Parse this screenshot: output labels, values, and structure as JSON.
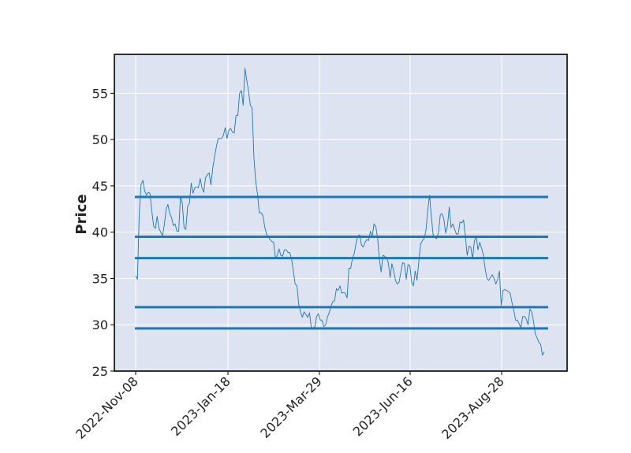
{
  "chart_data": {
    "type": "line",
    "title": "",
    "xlabel": "",
    "ylabel": "Price",
    "ylim": [
      25,
      59.2
    ],
    "y_ticks": [
      25,
      30,
      35,
      40,
      45,
      50,
      55
    ],
    "x_ticks": [
      "2022-Nov-08",
      "2023-Jan-18",
      "2023-Mar-29",
      "2023-Jun-16",
      "2023-Aug-28"
    ],
    "grid": true,
    "colors": {
      "background": "#dde3f0",
      "line": "#1f77b4",
      "grid": "#ffffff",
      "frame": "#000000"
    },
    "series": [
      {
        "values": [
          35.3,
          34.9,
          42.0,
          45.1,
          45.6,
          44.5,
          44.0,
          44.3,
          44.2,
          42.3,
          40.7,
          40.4,
          41.7,
          40.4,
          40.0,
          39.6,
          40.8,
          42.5,
          43.0,
          42.0,
          41.6,
          40.7,
          40.9,
          40.1,
          40.1,
          43.8,
          43.2,
          40.5,
          40.3,
          42.8,
          43.1,
          45.3,
          44.2,
          44.8,
          44.9,
          44.8,
          45.8,
          44.8,
          44.3,
          45.9,
          46.2,
          46.4,
          45.1,
          46.9,
          48.1,
          49.2,
          50.1,
          50.1,
          50.1,
          50.5,
          51.3,
          50.1,
          51.0,
          51.2,
          50.8,
          50.7,
          52.6,
          52.6,
          55.0,
          55.3,
          53.7,
          57.7,
          56.4,
          55.2,
          53.7,
          53.4,
          48.0,
          45.5,
          44.1,
          42.1,
          42.1,
          41.8,
          40.6,
          39.8,
          39.5,
          39.2,
          39.0,
          38.9,
          37.2,
          37.5,
          38.2,
          37.5,
          37.4,
          38.1,
          38.1,
          37.8,
          37.8,
          37.1,
          35.8,
          34.4,
          34.2,
          32.2,
          31.4,
          30.8,
          31.4,
          31.1,
          30.8,
          31.3,
          29.7,
          29.6,
          29.8,
          30.9,
          31.2,
          30.5,
          30.5,
          29.8,
          30.0,
          30.8,
          31.3,
          32.0,
          32.5,
          32.6,
          33.9,
          33.7,
          34.2,
          33.4,
          33.5,
          33.4,
          32.9,
          36.1,
          36.1,
          37.2,
          37.7,
          38.8,
          39.6,
          39.7,
          38.6,
          38.4,
          38.9,
          39.2,
          39.1,
          40.1,
          39.5,
          40.9,
          40.6,
          39.4,
          37.1,
          35.7,
          37.5,
          37.4,
          37.2,
          36.7,
          35.1,
          36.6,
          35.8,
          34.8,
          34.4,
          34.6,
          35.7,
          36.7,
          36.6,
          34.9,
          36.5,
          36.4,
          34.6,
          34.2,
          35.8,
          34.8,
          36.8,
          38.7,
          39.1,
          39.3,
          40.2,
          42.4,
          44.0,
          41.7,
          39.7,
          39.4,
          39.3,
          40.0,
          41.9,
          42.0,
          41.4,
          39.9,
          40.7,
          42.7,
          40.5,
          40.9,
          40.3,
          39.8,
          39.8,
          41.1,
          41.0,
          41.3,
          39.5,
          37.5,
          38.5,
          38.4,
          37.1,
          39.0,
          39.6,
          38.1,
          38.9,
          38.3,
          37.6,
          36.1,
          35.0,
          34.8,
          35.1,
          35.4,
          35.0,
          34.4,
          34.9,
          35.8,
          32.1,
          33.7,
          33.8,
          33.7,
          33.6,
          33.4,
          32.4,
          31.6,
          30.5,
          30.5,
          30.1,
          29.7,
          30.9,
          30.9,
          30.6,
          30.0,
          31.7,
          31.4,
          30.4,
          29.0,
          28.6,
          28.1,
          27.9,
          26.7,
          27.1
        ]
      }
    ],
    "hlines": [
      43.8,
      39.5,
      37.2,
      31.9,
      29.6
    ]
  }
}
